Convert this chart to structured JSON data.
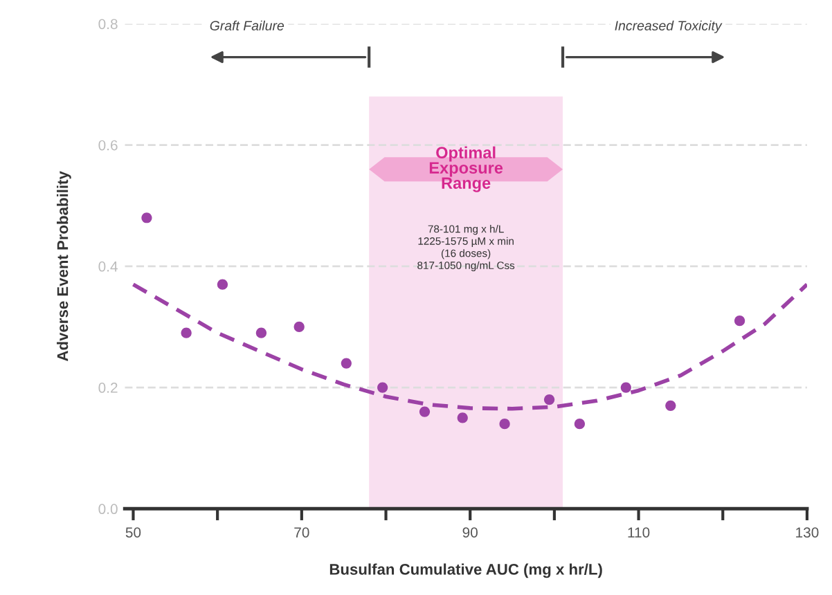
{
  "chart_data": {
    "type": "scatter",
    "xlabel": "Busulfan Cumulative AUC (mg x hr/L)",
    "ylabel": "Adverse Event Probability",
    "series": [
      {
        "color": "#9c42a6",
        "marker": "circle",
        "x": [
          51.6,
          56.3,
          60.6,
          65.2,
          69.7,
          75.3,
          79.6,
          84.6,
          89.1,
          94.1,
          99.4,
          103,
          108.5,
          113.8,
          122
        ],
        "values": [
          0.48,
          0.29,
          0.37,
          0.29,
          0.3,
          0.24,
          0.2,
          0.16,
          0.15,
          0.14,
          0.18,
          0.14,
          0.2,
          0.17,
          0.31
        ]
      },
      {
        "type": "line",
        "color": "#9c42a6",
        "line_style": "dashed",
        "x": [
          50,
          55,
          60,
          65,
          70,
          75,
          80,
          85,
          90,
          95,
          100,
          105,
          110,
          115,
          120,
          125,
          130
        ],
        "values": [
          0.37,
          0.33,
          0.29,
          0.26,
          0.23,
          0.205,
          0.185,
          0.172,
          0.166,
          0.165,
          0.168,
          0.178,
          0.195,
          0.22,
          0.26,
          0.305,
          0.37
        ]
      }
    ],
    "xlim": [
      49,
      130
    ],
    "ylim": [
      0,
      0.8
    ],
    "xticks": [
      50,
      {
        "value": 60,
        "label": null
      },
      70,
      {
        "value": 80,
        "label": null
      },
      90,
      {
        "value": 100,
        "label": null
      },
      110,
      {
        "value": 120,
        "label": null
      },
      130
    ],
    "yticks": [
      "0.0",
      0.2,
      0.4,
      0.6,
      0.8
    ],
    "bands": [
      {
        "axis": "x",
        "from": 78,
        "to": 101,
        "label": "Optimal Exposure Range",
        "color": "#f9dff0"
      }
    ],
    "annotations": [
      "Graft Failure",
      "Increased Toxicity",
      "78-101 mg x h/L\n1225-1575 µM x min\n(16 doses)\n817-1050 ng/mL Css"
    ],
    "grid": "y"
  }
}
